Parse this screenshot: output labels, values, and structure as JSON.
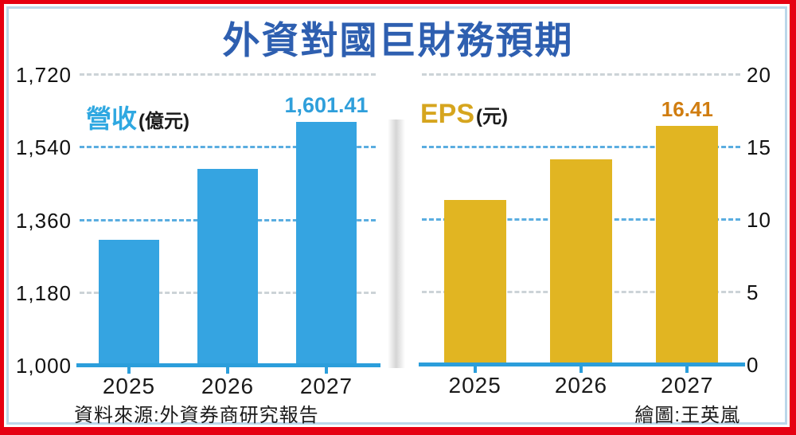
{
  "frame": {
    "outer_border_color": "#e60012",
    "inner_border_color": "#bcd7ea"
  },
  "title": {
    "text": "外資對國巨財務預期",
    "color": "#2e5fb0"
  },
  "chart_data": [
    {
      "type": "bar",
      "title": "營收",
      "series_label": "營收",
      "unit_label": "(億元)",
      "categories": [
        "2025",
        "2026",
        "2027"
      ],
      "values": [
        1310,
        1485,
        1601.41
      ],
      "ylim": [
        1000,
        1720
      ],
      "yticks": [
        {
          "value": 1720,
          "label": "1,720",
          "grid": "gray"
        },
        {
          "value": 1540,
          "label": "1,540",
          "grid": "blue"
        },
        {
          "value": 1360,
          "label": "1,360",
          "grid": "blue"
        },
        {
          "value": 1180,
          "label": "1,180",
          "grid": "gray"
        },
        {
          "value": 1000,
          "label": "1,000",
          "grid": "none"
        }
      ],
      "axis_side": "left",
      "grid_style": "dashed",
      "legend": "none",
      "bar_color": "#35a4e1",
      "axis_color": "#2b9edb",
      "label_color": "#2fa8e1",
      "annotation": {
        "text": "1,601.41",
        "bar_index": 2,
        "color": "#2f9fdb"
      }
    },
    {
      "type": "bar",
      "title": "EPS",
      "series_label": "EPS",
      "unit_label": "(元)",
      "categories": [
        "2025",
        "2026",
        "2027"
      ],
      "values": [
        11.3,
        14.1,
        16.41
      ],
      "ylim": [
        0,
        20
      ],
      "yticks": [
        {
          "value": 20,
          "label": "20",
          "grid": "gray"
        },
        {
          "value": 15,
          "label": "15",
          "grid": "blue"
        },
        {
          "value": 10,
          "label": "10",
          "grid": "blue"
        },
        {
          "value": 5,
          "label": "5",
          "grid": "gray"
        },
        {
          "value": 0,
          "label": "0",
          "grid": "none"
        }
      ],
      "axis_side": "right",
      "grid_style": "dashed",
      "legend": "none",
      "bar_color": "#e1b522",
      "axis_color": "#2b9edb",
      "label_color": "#d6a51e",
      "annotation": {
        "text": "16.41",
        "bar_index": 2,
        "color": "#d07d10"
      }
    }
  ],
  "footer": {
    "source": "資料來源:外資券商研究報告",
    "credit": "繪圖:王英嵐"
  }
}
